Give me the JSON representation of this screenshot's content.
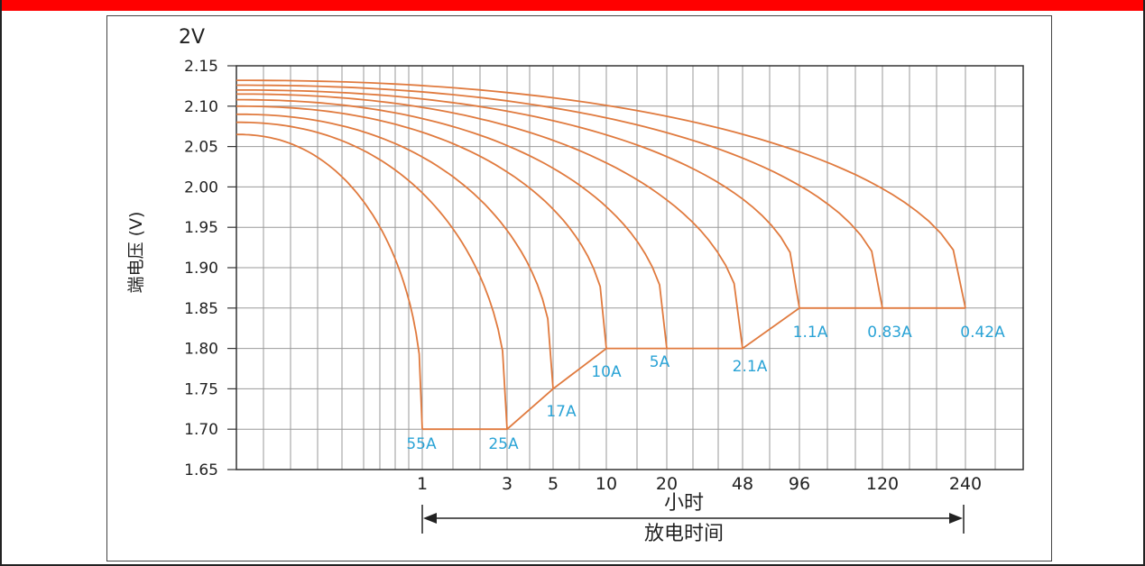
{
  "chart_data": {
    "type": "line",
    "unit_label": "2V",
    "ylabel": "端电压 (V)",
    "xunit": "小时",
    "xlabel": "放电时间",
    "ylim": [
      1.65,
      2.15
    ],
    "yticks": [
      "2.15",
      "2.10",
      "2.05",
      "2.00",
      "1.95",
      "1.90",
      "1.85",
      "1.80",
      "1.75",
      "1.70",
      "1.65"
    ],
    "xticks": [
      "1",
      "3",
      "5",
      "10",
      "20",
      "48",
      "96",
      "120",
      "240"
    ],
    "grid": true,
    "series": [
      {
        "name": "55A",
        "end_x": "1",
        "cutoff_v": 1.7,
        "start_v": 2.065
      },
      {
        "name": "25A",
        "end_x": "3",
        "cutoff_v": 1.7,
        "start_v": 2.08
      },
      {
        "name": "17A",
        "end_x": "5",
        "cutoff_v": 1.75,
        "start_v": 2.09
      },
      {
        "name": "10A",
        "end_x": "10",
        "cutoff_v": 1.8,
        "start_v": 2.1
      },
      {
        "name": "5A",
        "end_x": "20",
        "cutoff_v": 1.8,
        "start_v": 2.108
      },
      {
        "name": "2.1A",
        "end_x": "48",
        "cutoff_v": 1.8,
        "start_v": 2.115
      },
      {
        "name": "1.1A",
        "end_x": "96",
        "cutoff_v": 1.85,
        "start_v": 2.12
      },
      {
        "name": "0.83A",
        "end_x": "120",
        "cutoff_v": 1.85,
        "start_v": 2.126
      },
      {
        "name": "0.42A",
        "end_x": "240",
        "cutoff_v": 1.85,
        "start_v": 2.132
      }
    ],
    "colors": {
      "curve": "#e07a3e",
      "label": "#2aa3d6",
      "grid": "#999999"
    }
  }
}
